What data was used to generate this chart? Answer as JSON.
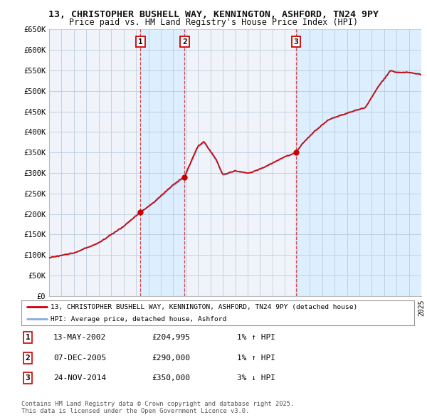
{
  "title_line1": "13, CHRISTOPHER BUSHELL WAY, KENNINGTON, ASHFORD, TN24 9PY",
  "title_line2": "Price paid vs. HM Land Registry's House Price Index (HPI)",
  "ylabel_ticks": [
    "£0",
    "£50K",
    "£100K",
    "£150K",
    "£200K",
    "£250K",
    "£300K",
    "£350K",
    "£400K",
    "£450K",
    "£500K",
    "£550K",
    "£600K",
    "£650K"
  ],
  "ytick_values": [
    0,
    50000,
    100000,
    150000,
    200000,
    250000,
    300000,
    350000,
    400000,
    450000,
    500000,
    550000,
    600000,
    650000
  ],
  "year_start": 1995,
  "year_end": 2025,
  "hpi_color": "#88aadd",
  "price_color": "#cc0000",
  "sale1_date": 2002.36,
  "sale1_price": 204995,
  "sale2_date": 2005.92,
  "sale2_price": 290000,
  "sale3_date": 2014.9,
  "sale3_price": 350000,
  "vline_color": "#cc0000",
  "shade_color": "#ddeeff",
  "legend_label1": "13, CHRISTOPHER BUSHELL WAY, KENNINGTON, ASHFORD, TN24 9PY (detached house)",
  "legend_label2": "HPI: Average price, detached house, Ashford",
  "table_entries": [
    {
      "num": "1",
      "date": "13-MAY-2002",
      "price": "£204,995",
      "hpi": "1% ↑ HPI"
    },
    {
      "num": "2",
      "date": "07-DEC-2005",
      "price": "£290,000",
      "hpi": "1% ↑ HPI"
    },
    {
      "num": "3",
      "date": "24-NOV-2014",
      "price": "£350,000",
      "hpi": "3% ↓ HPI"
    }
  ],
  "footnote": "Contains HM Land Registry data © Crown copyright and database right 2025.\nThis data is licensed under the Open Government Licence v3.0.",
  "background_color": "#ffffff",
  "grid_color": "#cccccc",
  "plot_bg_color": "#f0f4fa"
}
